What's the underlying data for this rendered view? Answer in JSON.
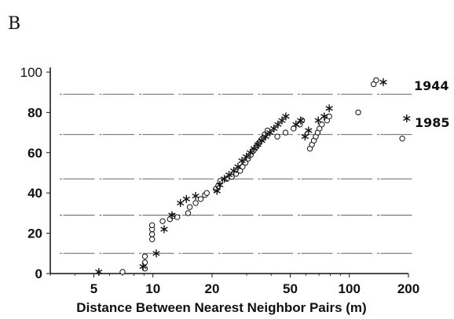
{
  "panel_label": "B",
  "chart_data": {
    "type": "scatter",
    "title": "",
    "xlabel": "Distance Between Nearest Neighbor Pairs (m)",
    "ylabel": "",
    "xscale": "log",
    "xlim": [
      3,
      200
    ],
    "ylim": [
      0,
      100
    ],
    "xticks": [
      {
        "value": 5,
        "label": "5"
      },
      {
        "value": 10,
        "label": "10"
      },
      {
        "value": 20,
        "label": "20"
      },
      {
        "value": 50,
        "label": "50"
      },
      {
        "value": 100,
        "label": "100"
      },
      {
        "value": 200,
        "label": "200"
      }
    ],
    "yticks": [
      {
        "value": 0,
        "label": "0"
      },
      {
        "value": 20,
        "label": "20"
      },
      {
        "value": 40,
        "label": "40"
      },
      {
        "value": 60,
        "label": "60"
      },
      {
        "value": 80,
        "label": "80"
      },
      {
        "value": 100,
        "label": "100"
      }
    ],
    "reference_lines_y": [
      10,
      29,
      47,
      69,
      89
    ],
    "series": [
      {
        "name": "1944",
        "marker": "circle",
        "points": [
          [
            7.0,
            0.8
          ],
          [
            9.1,
            2.5
          ],
          [
            9.1,
            5.5
          ],
          [
            9.1,
            8.5
          ],
          [
            9.9,
            17
          ],
          [
            9.9,
            19.5
          ],
          [
            9.9,
            22
          ],
          [
            9.9,
            24
          ],
          [
            11.2,
            26
          ],
          [
            12.2,
            27
          ],
          [
            12.6,
            28.5
          ],
          [
            13.3,
            28
          ],
          [
            15.1,
            30
          ],
          [
            15.4,
            33
          ],
          [
            16.5,
            35
          ],
          [
            17.5,
            37
          ],
          [
            18.4,
            39
          ],
          [
            18.8,
            40
          ],
          [
            20.9,
            42
          ],
          [
            21.5,
            43.5
          ],
          [
            22.0,
            46
          ],
          [
            23.8,
            47
          ],
          [
            25.2,
            48
          ],
          [
            26.5,
            49.5
          ],
          [
            27.8,
            51
          ],
          [
            28.6,
            53
          ],
          [
            29.6,
            55
          ],
          [
            30.5,
            57
          ],
          [
            31.5,
            59
          ],
          [
            32.5,
            61
          ],
          [
            33.7,
            63
          ],
          [
            34.7,
            65
          ],
          [
            36.0,
            67
          ],
          [
            37.0,
            69
          ],
          [
            38.3,
            71
          ],
          [
            43.0,
            68
          ],
          [
            47.3,
            70
          ],
          [
            52.0,
            72
          ],
          [
            56.0,
            74
          ],
          [
            57.5,
            76
          ],
          [
            63.0,
            62
          ],
          [
            64.5,
            64
          ],
          [
            66.0,
            66
          ],
          [
            67.5,
            68
          ],
          [
            69.0,
            70
          ],
          [
            70.5,
            72
          ],
          [
            72.5,
            74
          ],
          [
            77.0,
            76
          ],
          [
            79.0,
            78
          ],
          [
            111,
            80
          ],
          [
            133,
            94
          ],
          [
            137,
            96
          ],
          [
            186,
            67
          ]
        ]
      },
      {
        "name": "1985",
        "marker": "asterisk",
        "points": [
          [
            5.3,
            0.8
          ],
          [
            8.9,
            3.5
          ],
          [
            10.4,
            10
          ],
          [
            11.4,
            22
          ],
          [
            12.5,
            29
          ],
          [
            13.8,
            35
          ],
          [
            14.8,
            37
          ],
          [
            16.5,
            38.5
          ],
          [
            21.2,
            41
          ],
          [
            21.9,
            44
          ],
          [
            23.1,
            47
          ],
          [
            24.4,
            49
          ],
          [
            25.8,
            51
          ],
          [
            27.1,
            53
          ],
          [
            28.4,
            56
          ],
          [
            29.9,
            58
          ],
          [
            31.3,
            60
          ],
          [
            32.7,
            62
          ],
          [
            34.2,
            64
          ],
          [
            35.8,
            66
          ],
          [
            37.5,
            68
          ],
          [
            39.4,
            70
          ],
          [
            41.3,
            72
          ],
          [
            43.3,
            74
          ],
          [
            45.4,
            76
          ],
          [
            47.5,
            78
          ],
          [
            53.5,
            74
          ],
          [
            56.5,
            76
          ],
          [
            59.5,
            68
          ],
          [
            62.0,
            71
          ],
          [
            69.5,
            76
          ],
          [
            74.5,
            78
          ],
          [
            79.0,
            82
          ],
          [
            149,
            95
          ],
          [
            196,
            77
          ]
        ]
      }
    ]
  }
}
